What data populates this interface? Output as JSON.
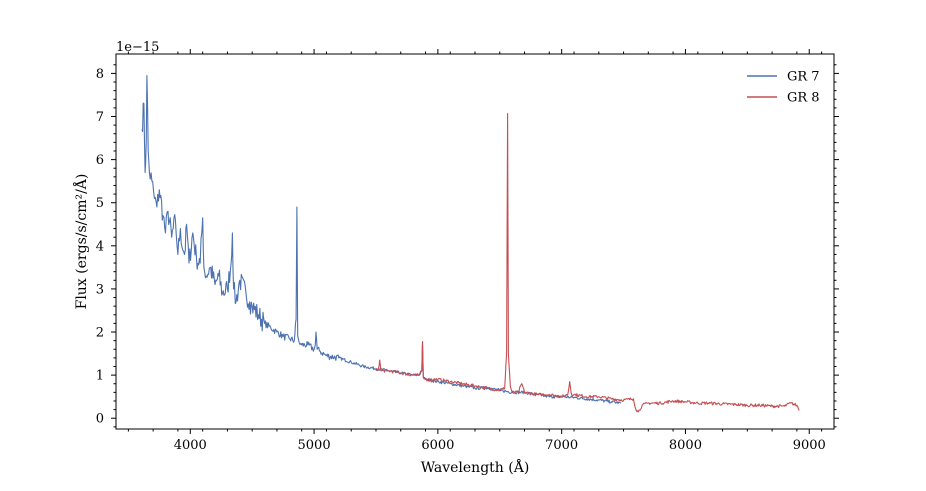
{
  "chart_data": {
    "type": "line",
    "xlabel": "Wavelength (Å)",
    "ylabel": "Flux (ergs/s/cm²/Å)",
    "offset_text": "1e−15",
    "xlim": [
      3400,
      9200
    ],
    "ylim": [
      -0.25,
      8.45
    ],
    "x_ticks": [
      4000,
      5000,
      6000,
      7000,
      8000,
      9000
    ],
    "x_tick_labels": [
      "4000",
      "5000",
      "6000",
      "7000",
      "8000",
      "9000"
    ],
    "y_ticks": [
      0,
      1,
      2,
      3,
      4,
      5,
      6,
      7,
      8
    ],
    "y_tick_labels": [
      "0",
      "1",
      "2",
      "3",
      "4",
      "5",
      "6",
      "7",
      "8"
    ],
    "grid": false,
    "legend": "top-right",
    "series": [
      {
        "name": "GR 7",
        "color": "#4c72b0",
        "x": [
          3610,
          3625,
          3635,
          3645,
          3650,
          3660,
          3670,
          3690,
          3710,
          3730,
          3750,
          3780,
          3800,
          3820,
          3850,
          3880,
          3900,
          3920,
          3940,
          3960,
          3970,
          3990,
          4020,
          4050,
          4080,
          4100,
          4110,
          4130,
          4160,
          4200,
          4230,
          4260,
          4300,
          4330,
          4340,
          4350,
          4370,
          4400,
          4450,
          4480,
          4500,
          4550,
          4600,
          4650,
          4700,
          4750,
          4800,
          4840,
          4855,
          4861,
          4868,
          4880,
          4900,
          4950,
          5000,
          5010,
          5016,
          5025,
          5050,
          5100,
          5200,
          5300,
          5400,
          5500,
          5600,
          5700,
          5800,
          5850,
          5870,
          5876,
          5882,
          5900,
          6000,
          6100,
          6200,
          6300,
          6400,
          6500,
          6600,
          6700,
          6800,
          6900,
          7000,
          7100,
          7200,
          7300,
          7400,
          7480
        ],
        "values": [
          6.7,
          7.3,
          5.7,
          6.5,
          7.95,
          6.2,
          5.7,
          5.5,
          5.1,
          4.9,
          5.3,
          4.7,
          4.3,
          4.8,
          4.2,
          4.6,
          3.8,
          4.4,
          3.9,
          3.9,
          4.5,
          3.6,
          4.3,
          3.7,
          3.6,
          4.65,
          3.5,
          3.3,
          3.5,
          3.1,
          3.3,
          2.9,
          3.0,
          3.6,
          4.3,
          3.0,
          2.7,
          3.2,
          2.9,
          2.7,
          2.6,
          2.4,
          2.2,
          2.1,
          2.0,
          1.9,
          1.85,
          1.8,
          2.3,
          4.9,
          1.9,
          1.75,
          1.7,
          1.7,
          1.6,
          1.7,
          2.0,
          1.6,
          1.55,
          1.45,
          1.4,
          1.3,
          1.2,
          1.15,
          1.1,
          1.05,
          1.0,
          1.0,
          1.1,
          1.75,
          0.95,
          0.9,
          0.85,
          0.8,
          0.75,
          0.7,
          0.7,
          0.65,
          0.6,
          0.6,
          0.55,
          0.5,
          0.5,
          0.48,
          0.45,
          0.42,
          0.38,
          0.35
        ]
      },
      {
        "name": "GR 8",
        "color": "#c44e52",
        "x": [
          5500,
          5520,
          5530,
          5540,
          5600,
          5700,
          5800,
          5850,
          5870,
          5876,
          5882,
          5900,
          6000,
          6100,
          6200,
          6300,
          6400,
          6500,
          6540,
          6555,
          6563,
          6570,
          6585,
          6600,
          6650,
          6678,
          6700,
          6800,
          6900,
          7000,
          7050,
          7065,
          7080,
          7100,
          7200,
          7300,
          7400,
          7500,
          7580,
          7600,
          7620,
          7650,
          7700,
          7800,
          7900,
          8000,
          8100,
          8200,
          8300,
          8400,
          8500,
          8600,
          8700,
          8800,
          8850,
          8900,
          8920
        ],
        "values": [
          1.1,
          1.15,
          1.35,
          1.1,
          1.1,
          1.05,
          1.0,
          1.0,
          1.1,
          1.78,
          0.95,
          0.9,
          0.9,
          0.85,
          0.8,
          0.75,
          0.7,
          0.65,
          0.7,
          1.5,
          7.07,
          1.5,
          0.75,
          0.6,
          0.6,
          0.8,
          0.6,
          0.55,
          0.55,
          0.5,
          0.55,
          0.85,
          0.55,
          0.55,
          0.5,
          0.5,
          0.45,
          0.42,
          0.45,
          0.2,
          0.15,
          0.3,
          0.35,
          0.35,
          0.4,
          0.38,
          0.35,
          0.35,
          0.33,
          0.32,
          0.3,
          0.3,
          0.28,
          0.28,
          0.35,
          0.3,
          0.18
        ]
      }
    ]
  }
}
